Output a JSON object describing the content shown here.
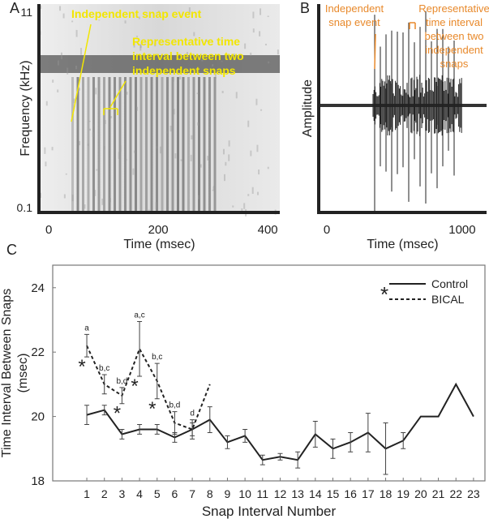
{
  "chart_data": [
    {
      "type": "spectrogram",
      "panel": "A",
      "ylabel": "Frequency (kHz)",
      "xlabel": "Time (msec)",
      "ylim": [
        0.1,
        11
      ],
      "yticks": [
        0.1,
        11
      ],
      "xlim": [
        -18,
        422
      ],
      "xticks": [
        0,
        200,
        400
      ],
      "annotation_color": "#f2e600",
      "annotations": [
        {
          "lines": [
            "Independent snap event"
          ]
        },
        {
          "lines": [
            "Representative time",
            "interval between two",
            "independent snaps"
          ]
        }
      ]
    },
    {
      "type": "waveform",
      "panel": "B",
      "ylabel": "Amplitude",
      "xlabel": "Time (msec)",
      "xlim": [
        -60,
        1180
      ],
      "xticks": [
        0,
        1000
      ],
      "annotation_color": "#e8892b",
      "annotations": [
        {
          "lines": [
            "Independent",
            "snap event"
          ]
        },
        {
          "lines": [
            "Representative",
            "time interval",
            "between two",
            "independent",
            "snaps"
          ]
        }
      ]
    },
    {
      "type": "line",
      "panel": "C",
      "ylabel": [
        "Time Interval Between Snaps",
        "(msec)"
      ],
      "xlabel": "Snap Interval Number",
      "x": [
        1,
        2,
        3,
        4,
        5,
        6,
        7,
        8,
        9,
        10,
        11,
        12,
        13,
        14,
        15,
        16,
        17,
        18,
        19,
        20,
        21,
        22,
        23
      ],
      "xlim": [
        -0.94,
        23.65
      ],
      "xticks": [
        1,
        2,
        3,
        4,
        5,
        6,
        7,
        8,
        9,
        10,
        11,
        12,
        13,
        14,
        15,
        16,
        17,
        18,
        19,
        20,
        21,
        22,
        23
      ],
      "ylim": [
        18,
        24.7
      ],
      "yticks": [
        18,
        20,
        22,
        24
      ],
      "legend": "upper right",
      "legend_note": "*",
      "series": [
        {
          "name": "Control",
          "color": "#222222",
          "dash": false,
          "values": [
            20.05,
            20.2,
            19.45,
            19.6,
            19.6,
            19.35,
            19.6,
            19.9,
            19.2,
            19.4,
            18.65,
            18.75,
            18.65,
            19.45,
            19.0,
            19.2,
            19.5,
            19.0,
            19.25,
            20.0,
            20.0,
            21.0,
            20.0
          ],
          "errors": [
            0.3,
            0.15,
            0.15,
            0.15,
            0.15,
            0.15,
            0.2,
            0.4,
            0.2,
            0.2,
            0.15,
            0.1,
            0.25,
            0.4,
            0.3,
            0.3,
            0.6,
            0.8,
            0.25,
            null,
            null,
            null,
            null
          ]
        },
        {
          "name": "BICAL",
          "color": "#222222",
          "dash": true,
          "values": [
            22.2,
            21.0,
            20.65,
            22.1,
            21.1,
            19.8,
            19.6,
            21.0,
            null,
            null,
            null,
            null,
            null,
            null,
            null,
            null,
            null,
            null,
            null,
            null,
            null,
            null,
            null
          ],
          "errors": [
            0.35,
            0.3,
            0.25,
            0.85,
            0.55,
            0.35,
            0.3,
            null,
            null,
            null,
            null,
            null,
            null,
            null,
            null,
            null,
            null,
            null,
            null,
            null,
            null,
            null,
            null
          ],
          "letters": [
            "a",
            "b,c",
            "b,d",
            "a,c",
            "b,c",
            "b,d",
            "d",
            null,
            null,
            null,
            null,
            null,
            null,
            null,
            null,
            null,
            null,
            null,
            null,
            null,
            null,
            null,
            null
          ],
          "significance": [
            "*",
            null,
            "*",
            "*",
            "*",
            null,
            null,
            null,
            null,
            null,
            null,
            null,
            null,
            null,
            null,
            null,
            null,
            null,
            null,
            null,
            null,
            null,
            null
          ]
        }
      ]
    }
  ]
}
